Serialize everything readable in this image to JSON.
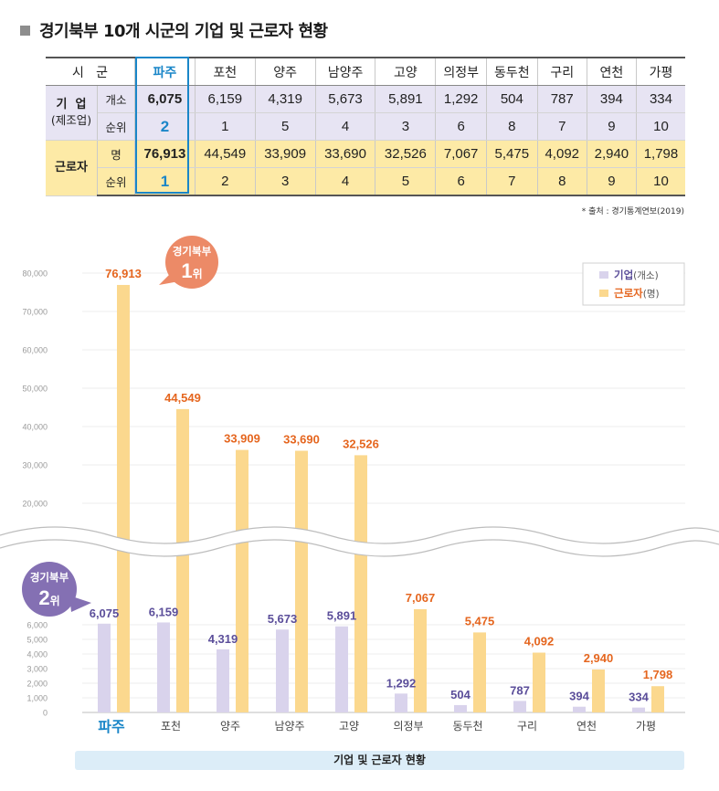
{
  "page": {
    "title": "경기북부 10개 시군의 기업 및 근로자 현황",
    "source": "* 출처 : 경기통계연보(2019)",
    "footer_label": "기업 및 근로자 현황"
  },
  "table": {
    "header_label": "시   군",
    "columns": [
      "파주",
      "포천",
      "양주",
      "남양주",
      "고양",
      "의정부",
      "동두천",
      "구리",
      "연천",
      "가평"
    ],
    "enterprise_group": "기  업",
    "enterprise_group_sub": "(제조업)",
    "enterprise_unit": "개소",
    "enterprise_counts": [
      "6,075",
      "6,159",
      "4,319",
      "5,673",
      "5,891",
      "1,292",
      "504",
      "787",
      "394",
      "334"
    ],
    "enterprise_rank_label": "순위",
    "enterprise_ranks": [
      "2",
      "1",
      "5",
      "4",
      "3",
      "6",
      "8",
      "7",
      "9",
      "10"
    ],
    "worker_group": "근로자",
    "worker_unit": "명",
    "worker_counts": [
      "76,913",
      "44,549",
      "33,909",
      "33,690",
      "32,526",
      "7,067",
      "5,475",
      "4,092",
      "2,940",
      "1,798"
    ],
    "worker_rank_label": "순위",
    "worker_ranks": [
      "1",
      "2",
      "3",
      "4",
      "5",
      "6",
      "7",
      "8",
      "9",
      "10"
    ]
  },
  "colors": {
    "enterprise_bar": "#d9d3ec",
    "worker_bar": "#fbd88e",
    "enterprise_label": "#5b4e9a",
    "worker_label": "#e5661f",
    "highlight_blue": "#1a86c8",
    "callout_orange": "#ec8a67",
    "callout_purple": "#8470b3"
  },
  "chart_data": {
    "type": "bar",
    "categories": [
      "파주",
      "포천",
      "양주",
      "남양주",
      "고양",
      "의정부",
      "동두천",
      "구리",
      "연천",
      "가평"
    ],
    "series": [
      {
        "name": "기업(개소)",
        "values": [
          6075,
          6159,
          4319,
          5673,
          5891,
          1292,
          504,
          787,
          394,
          334
        ],
        "labels": [
          "6,075",
          "6,159",
          "4,319",
          "5,673",
          "5,891",
          "1,292",
          "504",
          "787",
          "394",
          "334"
        ]
      },
      {
        "name": "근로자(명)",
        "values": [
          76913,
          44549,
          33909,
          33690,
          32526,
          7067,
          5475,
          4092,
          2940,
          1798
        ],
        "labels": [
          "76,913",
          "44,549",
          "33,909",
          "33,690",
          "32,526",
          "7,067",
          "5,475",
          "4,092",
          "2,940",
          "1,798"
        ]
      }
    ],
    "legend": [
      {
        "bold": "기업",
        "rest": "(개소)"
      },
      {
        "bold": "근로자",
        "rest": "(명)"
      }
    ],
    "lower_ticks": [
      "0",
      "1,000",
      "2,000",
      "3,000",
      "4,000",
      "5,000",
      "6,000"
    ],
    "lower_tick_values": [
      0,
      1000,
      2000,
      3000,
      4000,
      5000,
      6000
    ],
    "upper_ticks": [
      "20,000",
      "30,000",
      "40,000",
      "50,000",
      "60,000",
      "70,000",
      "80,000"
    ],
    "upper_tick_values": [
      20000,
      30000,
      40000,
      50000,
      60000,
      70000,
      80000
    ],
    "axis_break": true,
    "legend_position": "top-right",
    "grid": true,
    "callouts": [
      {
        "line1": "경기북부",
        "line2_num": "1",
        "line2_suffix": "위",
        "target": "근로자 파주"
      },
      {
        "line1": "경기북부",
        "line2_num": "2",
        "line2_suffix": "위",
        "target": "기업 파주"
      }
    ]
  }
}
